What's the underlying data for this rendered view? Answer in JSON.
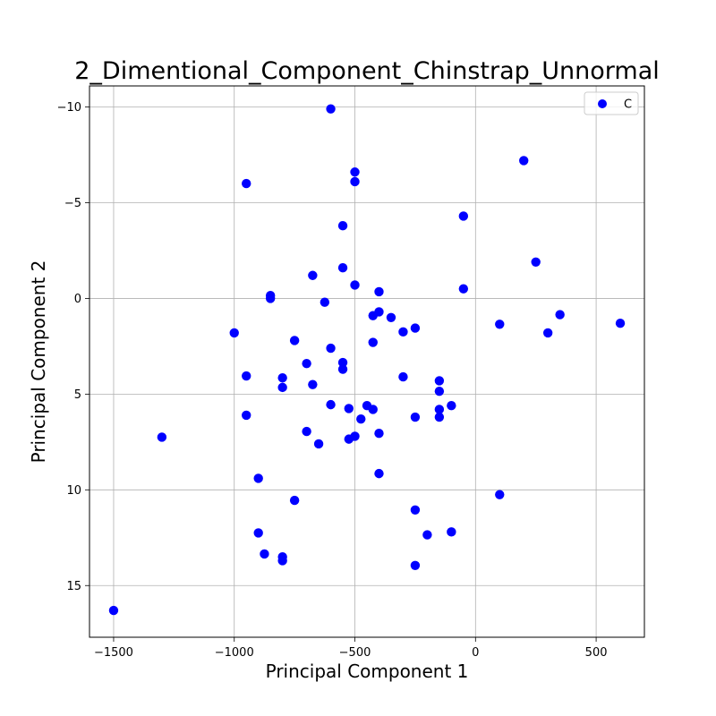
{
  "chart_data": {
    "type": "scatter",
    "title": "2_Dimentional_Component_Chinstrap_Unnormal",
    "xlabel": "Principal Component 1",
    "ylabel": "Principal Component 2",
    "xlim": [
      -1600,
      700
    ],
    "ylim": [
      -11.1,
      17.7
    ],
    "y_inverted": true,
    "x_ticks": [
      -1500,
      -1000,
      -500,
      0,
      500
    ],
    "x_tick_labels": [
      "−1500",
      "−1000",
      "−500",
      "0",
      "500"
    ],
    "y_ticks": [
      -10,
      -5,
      0,
      5,
      10,
      15
    ],
    "y_tick_labels": [
      "−10",
      "−5",
      "0",
      "5",
      "10",
      "15"
    ],
    "grid": true,
    "legend_position": "top-right",
    "series": [
      {
        "name": "C",
        "color": "#0000ff",
        "points": [
          [
            -600,
            -9.9
          ],
          [
            200,
            -7.2
          ],
          [
            -500,
            -6.6
          ],
          [
            -500,
            -6.1
          ],
          [
            -950,
            -6.0
          ],
          [
            -50,
            -4.3
          ],
          [
            -550,
            -3.8
          ],
          [
            250,
            -1.9
          ],
          [
            -550,
            -1.6
          ],
          [
            -675,
            -1.2
          ],
          [
            -500,
            -0.7
          ],
          [
            -50,
            -0.5
          ],
          [
            -400,
            -0.35
          ],
          [
            -850,
            -0.15
          ],
          [
            -850,
            0.0
          ],
          [
            -625,
            0.2
          ],
          [
            -400,
            0.7
          ],
          [
            -425,
            0.9
          ],
          [
            -350,
            1.0
          ],
          [
            350,
            0.85
          ],
          [
            100,
            1.35
          ],
          [
            600,
            1.3
          ],
          [
            -250,
            1.55
          ],
          [
            -300,
            1.75
          ],
          [
            300,
            1.8
          ],
          [
            -1000,
            1.8
          ],
          [
            -750,
            2.2
          ],
          [
            -425,
            2.3
          ],
          [
            -600,
            2.6
          ],
          [
            -550,
            3.35
          ],
          [
            -700,
            3.4
          ],
          [
            -550,
            3.7
          ],
          [
            -950,
            4.05
          ],
          [
            -800,
            4.15
          ],
          [
            -300,
            4.1
          ],
          [
            -150,
            4.3
          ],
          [
            -675,
            4.5
          ],
          [
            -800,
            4.65
          ],
          [
            -150,
            4.85
          ],
          [
            -600,
            5.55
          ],
          [
            -450,
            5.6
          ],
          [
            -100,
            5.6
          ],
          [
            -525,
            5.75
          ],
          [
            -425,
            5.8
          ],
          [
            -150,
            5.8
          ],
          [
            -950,
            6.1
          ],
          [
            -475,
            6.3
          ],
          [
            -250,
            6.2
          ],
          [
            -150,
            6.2
          ],
          [
            -700,
            6.95
          ],
          [
            -400,
            7.05
          ],
          [
            -500,
            7.2
          ],
          [
            -525,
            7.35
          ],
          [
            -1300,
            7.25
          ],
          [
            -650,
            7.6
          ],
          [
            -400,
            9.15
          ],
          [
            -900,
            9.4
          ],
          [
            100,
            10.25
          ],
          [
            -750,
            10.55
          ],
          [
            -250,
            11.05
          ],
          [
            -900,
            12.25
          ],
          [
            -100,
            12.2
          ],
          [
            -200,
            12.35
          ],
          [
            -875,
            13.35
          ],
          [
            -800,
            13.5
          ],
          [
            -800,
            13.7
          ],
          [
            -250,
            13.95
          ],
          [
            -1500,
            16.3
          ]
        ]
      }
    ]
  }
}
